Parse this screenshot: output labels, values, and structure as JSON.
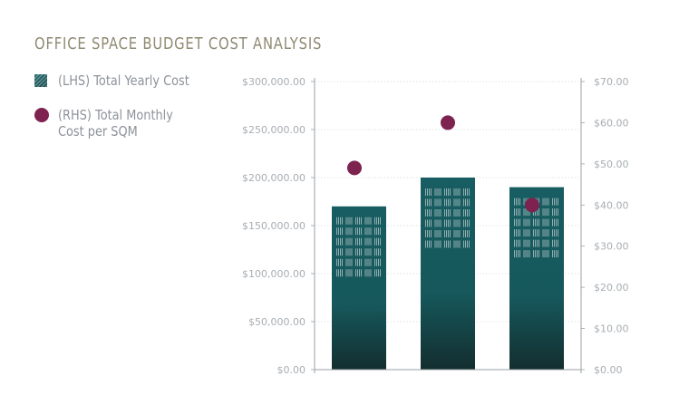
{
  "title": "OFFICE SPACE BUDGET COST ANALYSIS",
  "legend": {
    "bar_label": "(LHS) Total Yearly Cost",
    "dot_label_line1": "(RHS) Total Monthly",
    "dot_label_line2": "Cost per SQM"
  },
  "colors": {
    "bar_top": "#175d61",
    "bar_bottom": "#132e2f",
    "dot": "#7e2350",
    "title": "#8e8a72",
    "text": "#8e939a"
  },
  "chart_data": {
    "type": "bar",
    "title": "OFFICE SPACE BUDGET COST ANALYSIS",
    "categories": [
      "",
      "",
      ""
    ],
    "series": [
      {
        "name": "(LHS) Total Yearly Cost",
        "axis": "left",
        "type": "bar",
        "values": [
          170000,
          200000,
          190000
        ]
      },
      {
        "name": "(RHS) Total Monthly Cost per SQM",
        "axis": "right",
        "type": "scatter",
        "values": [
          49,
          60,
          40
        ]
      }
    ],
    "ylim_left": [
      0,
      300000
    ],
    "ylim_right": [
      0,
      70
    ],
    "yticks_left": [
      "$0.00",
      "$50,000.00",
      "$100,000.00",
      "$150,000.00",
      "$200,000.00",
      "$250,000.00",
      "$300,000.00"
    ],
    "yticks_right": [
      "$0.00",
      "$10.00",
      "$20.00",
      "$30.00",
      "$40.00",
      "$50.00",
      "$60.00",
      "$70.00"
    ],
    "grid": true,
    "legend_position": "top-left"
  }
}
